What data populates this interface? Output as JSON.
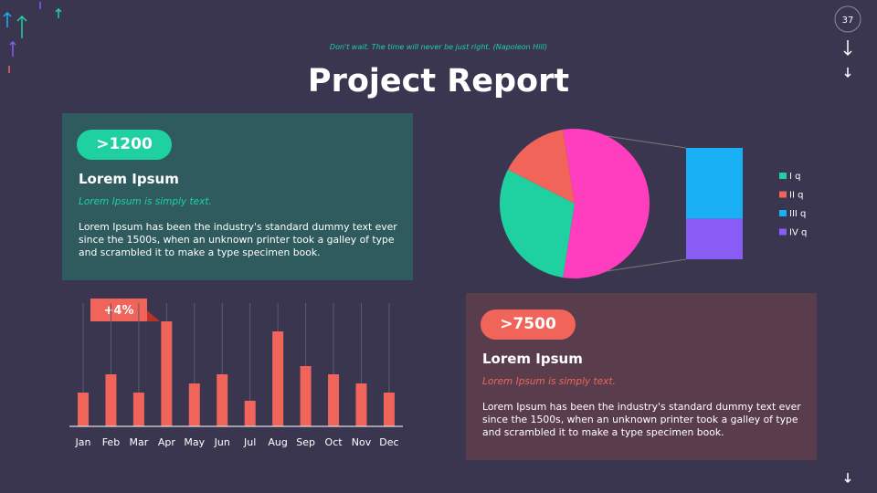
{
  "header": {
    "quote": "Don't wait. The time will never be just right. (Napoleon Hill)",
    "title": "Project Report",
    "page_number": "37"
  },
  "cards": [
    {
      "badge": ">1200",
      "heading": "Lorem Ipsum",
      "subheading": "Lorem Ipsum is simply text.",
      "body": "Lorem Ipsum has been the industry's standard dummy text ever since the 1500s, when an unknown printer took a galley of type and scrambled it to make a type specimen book."
    },
    {
      "badge": ">7500",
      "heading": "Lorem Ipsum",
      "subheading": "Lorem Ipsum is simply text.",
      "body": "Lorem Ipsum has been the industry's standard dummy text ever since the 1500s, when an unknown printer took a galley of type and scrambled it to make a type specimen book."
    }
  ],
  "chart_data": [
    {
      "type": "bar",
      "categories": [
        "Jan",
        "Feb",
        "Mar",
        "Apr",
        "May",
        "Jun",
        "Jul",
        "Aug",
        "Sep",
        "Oct",
        "Nov",
        "Dec"
      ],
      "values": [
        37,
        57,
        37,
        115,
        47,
        57,
        28,
        104,
        66,
        57,
        47,
        37
      ],
      "color": "#f0645a",
      "ylim": [
        0,
        135
      ],
      "grid": true,
      "annotation": "+4%"
    },
    {
      "type": "pie",
      "categories": [
        "I q",
        "II q",
        "III q",
        "IV q"
      ],
      "values": [
        30,
        15,
        35,
        20
      ],
      "colors": [
        "#1fd1a1",
        "#f0645a",
        "#1ab0f5",
        "#8a5cf6"
      ],
      "other_color": "#ff3dbf"
    }
  ]
}
